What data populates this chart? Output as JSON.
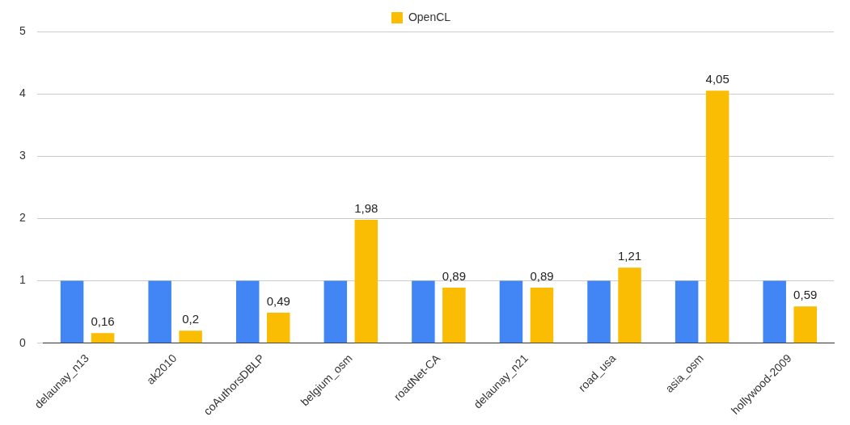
{
  "chart_data": {
    "type": "bar",
    "categories": [
      "delaunay_n13",
      "ak2010",
      "coAuthorsDBLP",
      "belgium_osm",
      "roadNet-CA",
      "delaunay_n21",
      "road_usa",
      "asia_osm",
      "hollywood-2009"
    ],
    "series": [
      {
        "color": "#4285f4",
        "values": [
          1,
          1,
          1,
          1,
          1,
          1,
          1,
          1,
          1
        ]
      },
      {
        "name": "OpenCL",
        "color": "#fbbc04",
        "values": [
          0.16,
          0.2,
          0.49,
          1.98,
          0.89,
          0.89,
          1.21,
          4.05,
          0.59
        ],
        "value_labels": [
          "0,16",
          "0,2",
          "0,49",
          "1,98",
          "0,89",
          "0,89",
          "1,21",
          "4,05",
          "0,59"
        ]
      }
    ],
    "ylim": [
      0,
      5
    ],
    "yticks": [
      0,
      1,
      2,
      3,
      4,
      5
    ],
    "grid": "y",
    "legend": "top"
  }
}
